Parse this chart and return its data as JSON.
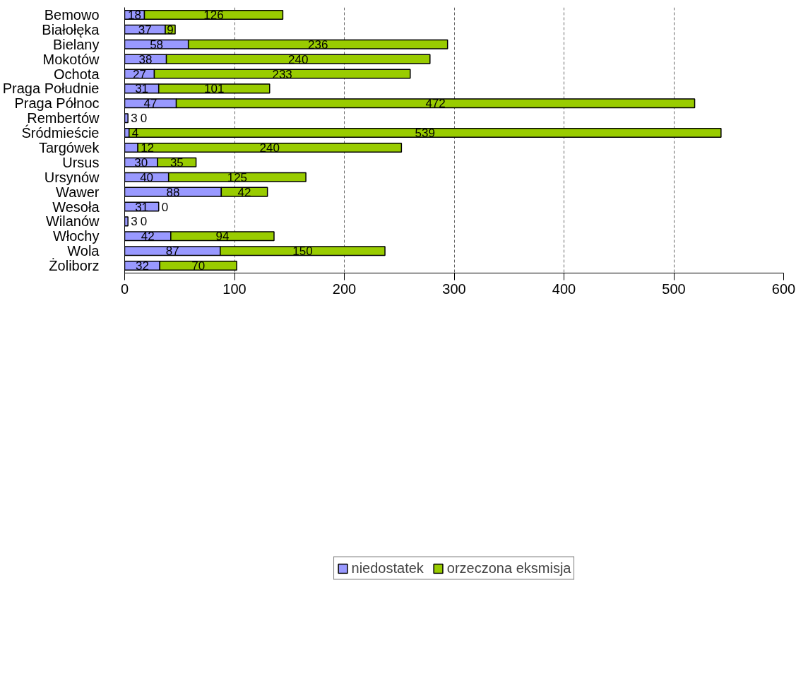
{
  "chart_data": {
    "type": "bar",
    "orientation": "horizontal",
    "stacked": true,
    "data_labels": true,
    "grid": "x",
    "legend": "bottom",
    "categories": [
      "Bemowo",
      "Białołęka",
      "Bielany",
      "Mokotów",
      "Ochota",
      "Praga Południe",
      "Praga Północ",
      "Rembertów",
      "Śródmieście",
      "Targówek",
      "Ursus",
      "Ursynów",
      "Wawer",
      "Wesoła",
      "Wilanów",
      "Włochy",
      "Wola",
      "Żoliborz"
    ],
    "series": [
      {
        "name": "niedostatek",
        "color": "#9999ff",
        "values": [
          18,
          37,
          58,
          38,
          27,
          31,
          47,
          3,
          4,
          12,
          30,
          40,
          88,
          31,
          3,
          42,
          87,
          32
        ]
      },
      {
        "name": "orzeczona eksmisja",
        "color": "#99cc00",
        "values": [
          126,
          9,
          236,
          240,
          233,
          101,
          472,
          0,
          539,
          240,
          35,
          125,
          42,
          0,
          0,
          94,
          150,
          70
        ]
      }
    ],
    "xlim": [
      0,
      600
    ],
    "xticks": [
      0,
      100,
      200,
      300,
      400,
      500,
      600
    ]
  }
}
